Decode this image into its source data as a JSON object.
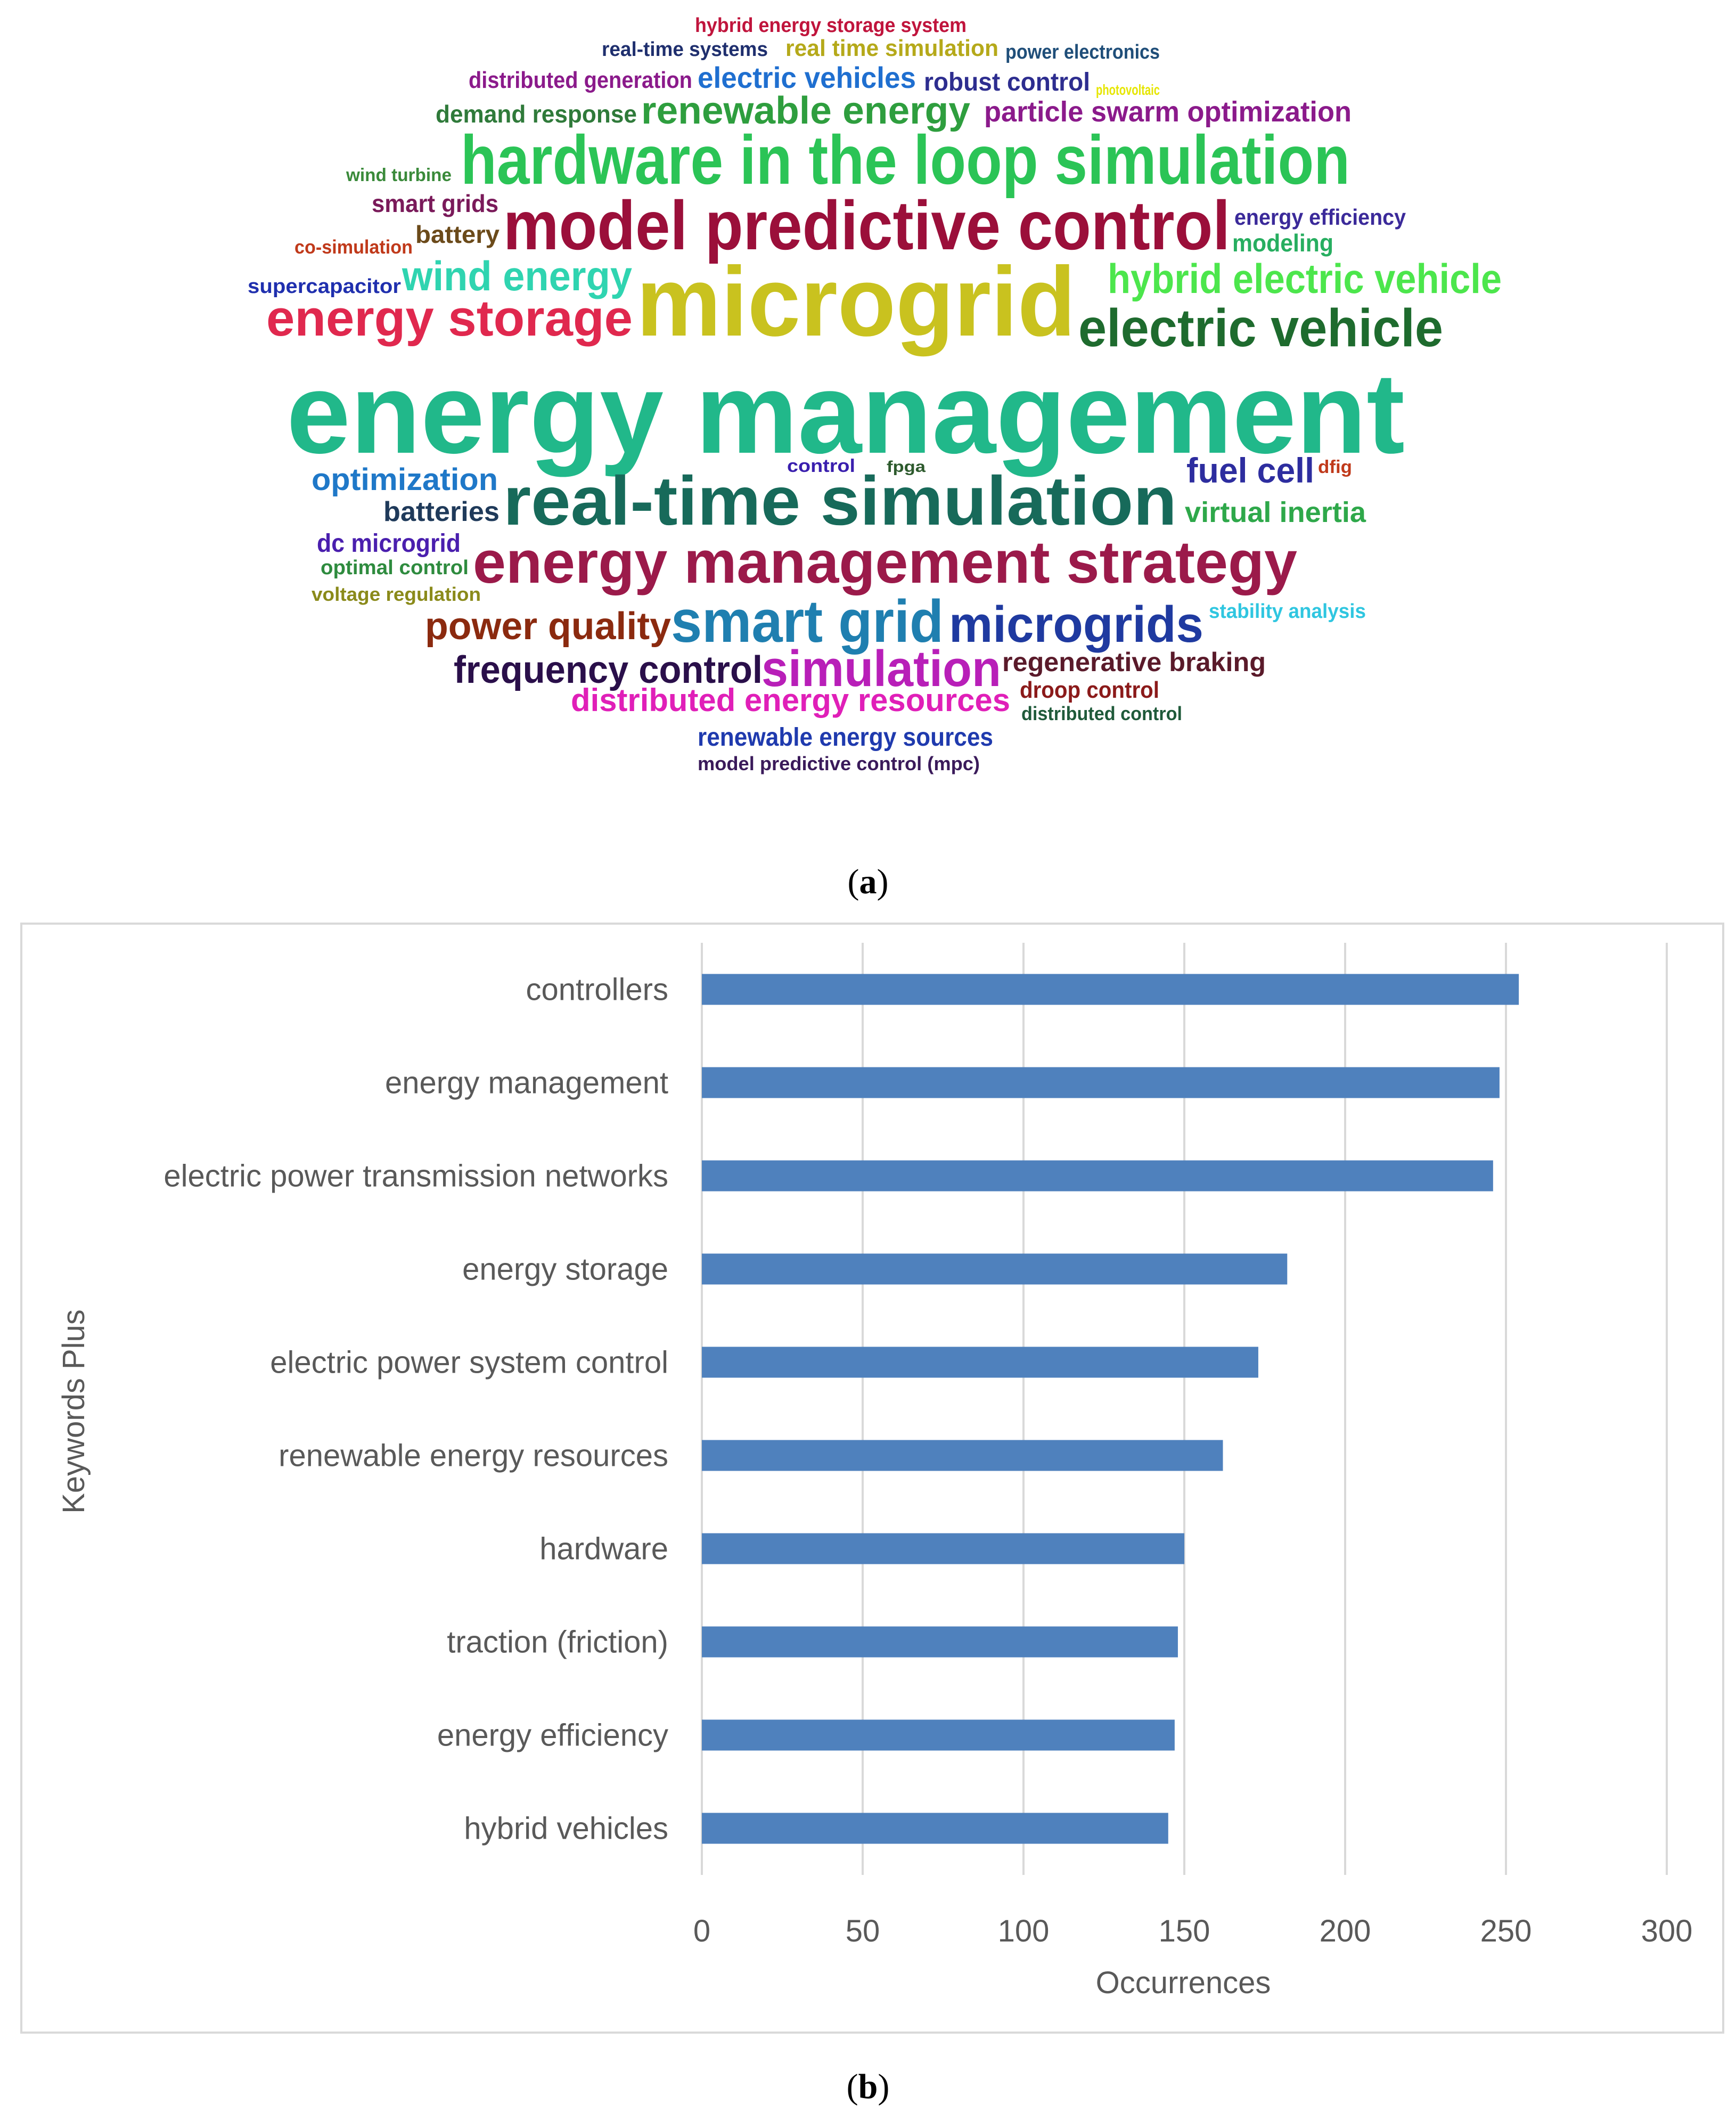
{
  "captions": {
    "a": "a",
    "b": "b"
  },
  "chart_data": [
    {
      "type": "wordcloud",
      "words": [
        {
          "text": "hybrid energy storage system",
          "color": "#c0143c",
          "weight": 1
        },
        {
          "text": "real-time systems",
          "color": "#1f2f6e",
          "weight": 1
        },
        {
          "text": "real time simulation",
          "color": "#b5a91a",
          "weight": 1
        },
        {
          "text": "power electronics",
          "color": "#1f4e79",
          "weight": 1
        },
        {
          "text": "distributed generation",
          "color": "#8b1a8b",
          "weight": 1
        },
        {
          "text": "electric vehicles",
          "color": "#1f6fd0",
          "weight": 2
        },
        {
          "text": "robust control",
          "color": "#2d2d8f",
          "weight": 1
        },
        {
          "text": "photovoltaic",
          "color": "#e6e600",
          "weight": 1
        },
        {
          "text": "demand response",
          "color": "#2f7a3a",
          "weight": 1
        },
        {
          "text": "renewable energy",
          "color": "#2e9e3e",
          "weight": 2
        },
        {
          "text": "particle swarm optimization",
          "color": "#8b1a8b",
          "weight": 2
        },
        {
          "text": "wind turbine",
          "color": "#3a8a3a",
          "weight": 1
        },
        {
          "text": "hardware in the loop simulation",
          "color": "#2bc456",
          "weight": 4
        },
        {
          "text": "smart grids",
          "color": "#7a1a5a",
          "weight": 1
        },
        {
          "text": "model predictive control",
          "color": "#9b0f3a",
          "weight": 4
        },
        {
          "text": "energy efficiency",
          "color": "#3b2a9a",
          "weight": 1
        },
        {
          "text": "co-simulation",
          "color": "#c0391a",
          "weight": 1
        },
        {
          "text": "battery",
          "color": "#6b4a1a",
          "weight": 1
        },
        {
          "text": "modeling",
          "color": "#27ae60",
          "weight": 1
        },
        {
          "text": "supercapacitor",
          "color": "#1f2fae",
          "weight": 1
        },
        {
          "text": "wind energy",
          "color": "#2fd4b0",
          "weight": 2
        },
        {
          "text": "microgrid",
          "color": "#c9c21f",
          "weight": 5
        },
        {
          "text": "hybrid electric vehicle",
          "color": "#4ce64c",
          "weight": 2
        },
        {
          "text": "energy storage",
          "color": "#e0284e",
          "weight": 3
        },
        {
          "text": "electric vehicle",
          "color": "#1e6b2e",
          "weight": 3
        },
        {
          "text": "energy management",
          "color": "#21b88a",
          "weight": 6
        },
        {
          "text": "optimization",
          "color": "#1f78c8",
          "weight": 2
        },
        {
          "text": "control",
          "color": "#3a1fae",
          "weight": 1
        },
        {
          "text": "fpga",
          "color": "#2d5a2d",
          "weight": 1
        },
        {
          "text": "fuel cell",
          "color": "#2d2d9f",
          "weight": 2
        },
        {
          "text": "dfig",
          "color": "#c0391a",
          "weight": 1
        },
        {
          "text": "batteries",
          "color": "#1f3a5a",
          "weight": 1
        },
        {
          "text": "real-time simulation",
          "color": "#176a5a",
          "weight": 4
        },
        {
          "text": "virtual inertia",
          "color": "#2ea84a",
          "weight": 1
        },
        {
          "text": "dc microgrid",
          "color": "#4a1fae",
          "weight": 1
        },
        {
          "text": "optimal control",
          "color": "#2e8b3e",
          "weight": 1
        },
        {
          "text": "energy management strategy",
          "color": "#9b1a4a",
          "weight": 4
        },
        {
          "text": "voltage regulation",
          "color": "#8a8a1a",
          "weight": 1
        },
        {
          "text": "power quality",
          "color": "#8b2a0f",
          "weight": 2
        },
        {
          "text": "smart grid",
          "color": "#1f7fb0",
          "weight": 3
        },
        {
          "text": "microgrids",
          "color": "#1f3aa0",
          "weight": 3
        },
        {
          "text": "stability analysis",
          "color": "#2fc6e0",
          "weight": 1
        },
        {
          "text": "frequency control",
          "color": "#2a0f4a",
          "weight": 2
        },
        {
          "text": "simulation",
          "color": "#b81fb8",
          "weight": 3
        },
        {
          "text": "regenerative braking",
          "color": "#5a1a2a",
          "weight": 1
        },
        {
          "text": "distributed energy resources",
          "color": "#e01fb8",
          "weight": 2
        },
        {
          "text": "droop control",
          "color": "#8b1a1a",
          "weight": 1
        },
        {
          "text": "distributed control",
          "color": "#1f5a3a",
          "weight": 1
        },
        {
          "text": "renewable energy sources",
          "color": "#1f3aae",
          "weight": 1
        },
        {
          "text": "model predictive control (mpc)",
          "color": "#3a1a5a",
          "weight": 1
        }
      ]
    },
    {
      "type": "bar",
      "orientation": "horizontal",
      "categories": [
        "controllers",
        "energy management",
        "electric power transmission networks",
        "energy storage",
        "electric power system control",
        "renewable energy resources",
        "hardware",
        "traction (friction)",
        "energy efficiency",
        "hybrid vehicles"
      ],
      "values": [
        254,
        248,
        246,
        182,
        173,
        162,
        150,
        148,
        147,
        145
      ],
      "xlabel": "Occurrences",
      "ylabel": "Keywords Plus",
      "xlim": [
        0,
        300
      ],
      "xticks": [
        "0",
        "50",
        "100",
        "150",
        "200",
        "250",
        "300"
      ],
      "grid": "vertical",
      "bar_color": "#4f81bd",
      "grid_color": "#d9d9d9"
    }
  ]
}
